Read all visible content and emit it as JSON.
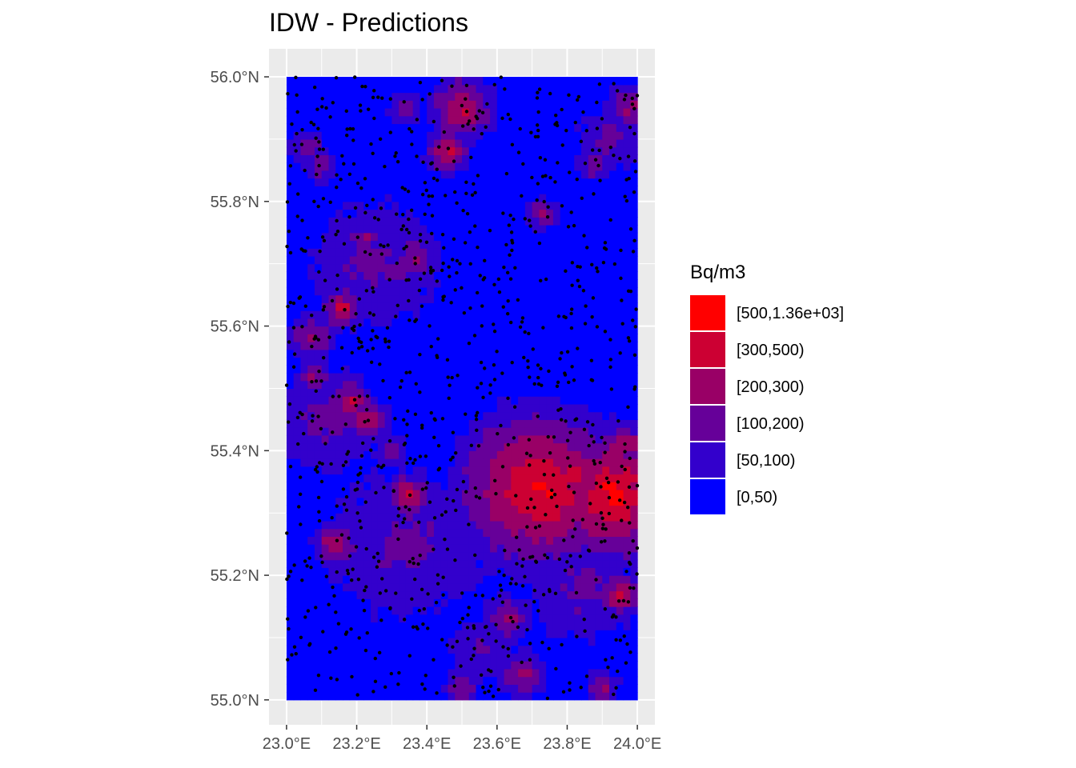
{
  "title": "IDW - Predictions",
  "colors": {
    "panel_bg": "#EBEBEB",
    "grid": "#FFFFFF",
    "tick_text": "#4D4D4D",
    "points": "#000000"
  },
  "chart_data": {
    "type": "heatmap",
    "title": "IDW - Predictions",
    "xlabel": "",
    "ylabel": "",
    "xlim": [
      22.95,
      24.05
    ],
    "ylim": [
      54.96,
      56.045
    ],
    "data_extent": {
      "lon": [
        23.0,
        24.0
      ],
      "lat": [
        55.0,
        56.0
      ]
    },
    "x_ticks": [
      {
        "value": 23.0,
        "label": "23.0°E"
      },
      {
        "value": 23.2,
        "label": "23.2°E"
      },
      {
        "value": 23.4,
        "label": "23.4°E"
      },
      {
        "value": 23.6,
        "label": "23.6°E"
      },
      {
        "value": 23.8,
        "label": "23.8°E"
      },
      {
        "value": 24.0,
        "label": "24.0°E"
      }
    ],
    "y_ticks": [
      {
        "value": 55.0,
        "label": "55.0°N"
      },
      {
        "value": 55.2,
        "label": "55.2°N"
      },
      {
        "value": 55.4,
        "label": "55.4°N"
      },
      {
        "value": 55.6,
        "label": "55.6°N"
      },
      {
        "value": 55.8,
        "label": "55.8°N"
      },
      {
        "value": 56.0,
        "label": "56.0°N"
      }
    ],
    "grid": true,
    "legend": {
      "title": "Bq/m3",
      "placement": "right",
      "classes": [
        {
          "label": "[500,1.36e+03]",
          "color": "#FF0000"
        },
        {
          "label": "[300,500)",
          "color": "#CC0033"
        },
        {
          "label": "[200,300)",
          "color": "#990066"
        },
        {
          "label": "[100,200)",
          "color": "#660099"
        },
        {
          "label": "[50,100)",
          "color": "#3300CC"
        },
        {
          "label": "[0,50)",
          "color": "#0000FF"
        }
      ]
    },
    "hotspots": [
      {
        "lon": 23.72,
        "lat": 55.34,
        "class": 0,
        "spread": 0.06
      },
      {
        "lon": 23.93,
        "lat": 55.33,
        "class": 0,
        "spread": 0.05
      },
      {
        "lon": 23.82,
        "lat": 55.36,
        "class": 1,
        "spread": 0.05
      },
      {
        "lon": 23.96,
        "lat": 55.41,
        "class": 1,
        "spread": 0.02
      },
      {
        "lon": 23.16,
        "lat": 55.63,
        "class": 1,
        "spread": 0.02
      },
      {
        "lon": 23.18,
        "lat": 55.48,
        "class": 1,
        "spread": 0.02
      },
      {
        "lon": 23.23,
        "lat": 55.45,
        "class": 1,
        "spread": 0.02
      },
      {
        "lon": 23.46,
        "lat": 55.88,
        "class": 1,
        "spread": 0.02
      },
      {
        "lon": 23.5,
        "lat": 55.95,
        "class": 1,
        "spread": 0.03
      },
      {
        "lon": 23.14,
        "lat": 55.25,
        "class": 1,
        "spread": 0.02
      },
      {
        "lon": 23.35,
        "lat": 55.33,
        "class": 1,
        "spread": 0.02
      },
      {
        "lon": 23.95,
        "lat": 55.17,
        "class": 1,
        "spread": 0.02
      },
      {
        "lon": 23.22,
        "lat": 55.74,
        "class": 2,
        "spread": 0.02
      },
      {
        "lon": 23.37,
        "lat": 55.71,
        "class": 2,
        "spread": 0.03
      },
      {
        "lon": 23.08,
        "lat": 55.52,
        "class": 2,
        "spread": 0.02
      },
      {
        "lon": 23.07,
        "lat": 55.58,
        "class": 2,
        "spread": 0.03
      },
      {
        "lon": 23.5,
        "lat": 55.02,
        "class": 2,
        "spread": 0.02
      },
      {
        "lon": 23.67,
        "lat": 55.04,
        "class": 2,
        "spread": 0.03
      },
      {
        "lon": 23.88,
        "lat": 55.86,
        "class": 2,
        "spread": 0.02
      },
      {
        "lon": 23.73,
        "lat": 55.78,
        "class": 2,
        "spread": 0.02
      },
      {
        "lon": 23.06,
        "lat": 55.89,
        "class": 2,
        "spread": 0.02
      },
      {
        "lon": 23.1,
        "lat": 55.86,
        "class": 2,
        "spread": 0.02
      },
      {
        "lon": 23.9,
        "lat": 55.02,
        "class": 2,
        "spread": 0.02
      },
      {
        "lon": 23.34,
        "lat": 55.95,
        "class": 2,
        "spread": 0.02
      },
      {
        "lon": 23.3,
        "lat": 55.4,
        "class": 2,
        "spread": 0.02
      },
      {
        "lon": 23.98,
        "lat": 55.95,
        "class": 2,
        "spread": 0.03
      },
      {
        "lon": 23.63,
        "lat": 55.13,
        "class": 2,
        "spread": 0.03
      },
      {
        "lon": 23.34,
        "lat": 55.25,
        "class": 3,
        "spread": 0.14
      },
      {
        "lon": 23.25,
        "lat": 55.7,
        "class": 3,
        "spread": 0.12
      },
      {
        "lon": 23.85,
        "lat": 55.18,
        "class": 3,
        "spread": 0.1
      },
      {
        "lon": 23.6,
        "lat": 55.3,
        "class": 3,
        "spread": 0.08
      },
      {
        "lon": 23.12,
        "lat": 55.45,
        "class": 3,
        "spread": 0.1
      },
      {
        "lon": 23.92,
        "lat": 55.9,
        "class": 3,
        "spread": 0.06
      },
      {
        "lon": 23.55,
        "lat": 55.08,
        "class": 3,
        "spread": 0.06
      }
    ],
    "sample_points": {
      "count": 1000,
      "extent": {
        "lon": [
          23.0,
          24.0
        ],
        "lat": [
          55.0,
          56.0
        ]
      }
    }
  }
}
